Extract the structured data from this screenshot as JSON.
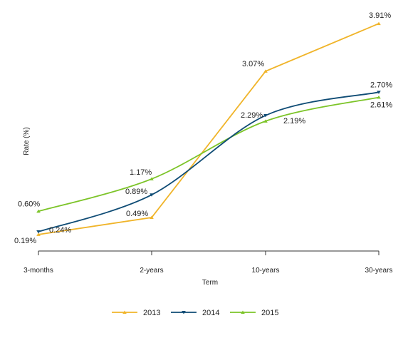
{
  "chart_data": {
    "type": "line",
    "title": "",
    "xlabel": "Term",
    "ylabel": "Rate (%)",
    "categories": [
      "3-months",
      "2-years",
      "10-years",
      "30-years"
    ],
    "ylim": [
      0,
      4.1
    ],
    "grid": false,
    "legend_position": "bottom",
    "series": [
      {
        "name": "2013",
        "color": "#f0b429",
        "marker": "triangle-up",
        "values": [
          0.19,
          0.49,
          3.07,
          3.91
        ],
        "labels": [
          "0.19%",
          "0.49%",
          "3.07%",
          "3.91%"
        ]
      },
      {
        "name": "2014",
        "color": "#0f4c75",
        "marker": "triangle-down",
        "values": [
          0.24,
          0.89,
          2.29,
          2.7
        ],
        "labels": [
          "0.24%",
          "0.89%",
          "2.29%",
          "2.70%"
        ]
      },
      {
        "name": "2015",
        "color": "#7cc428",
        "marker": "triangle-up",
        "values": [
          0.6,
          1.17,
          2.19,
          2.61
        ],
        "labels": [
          "0.60%",
          "1.17%",
          "2.19%",
          "2.61%"
        ]
      }
    ]
  }
}
